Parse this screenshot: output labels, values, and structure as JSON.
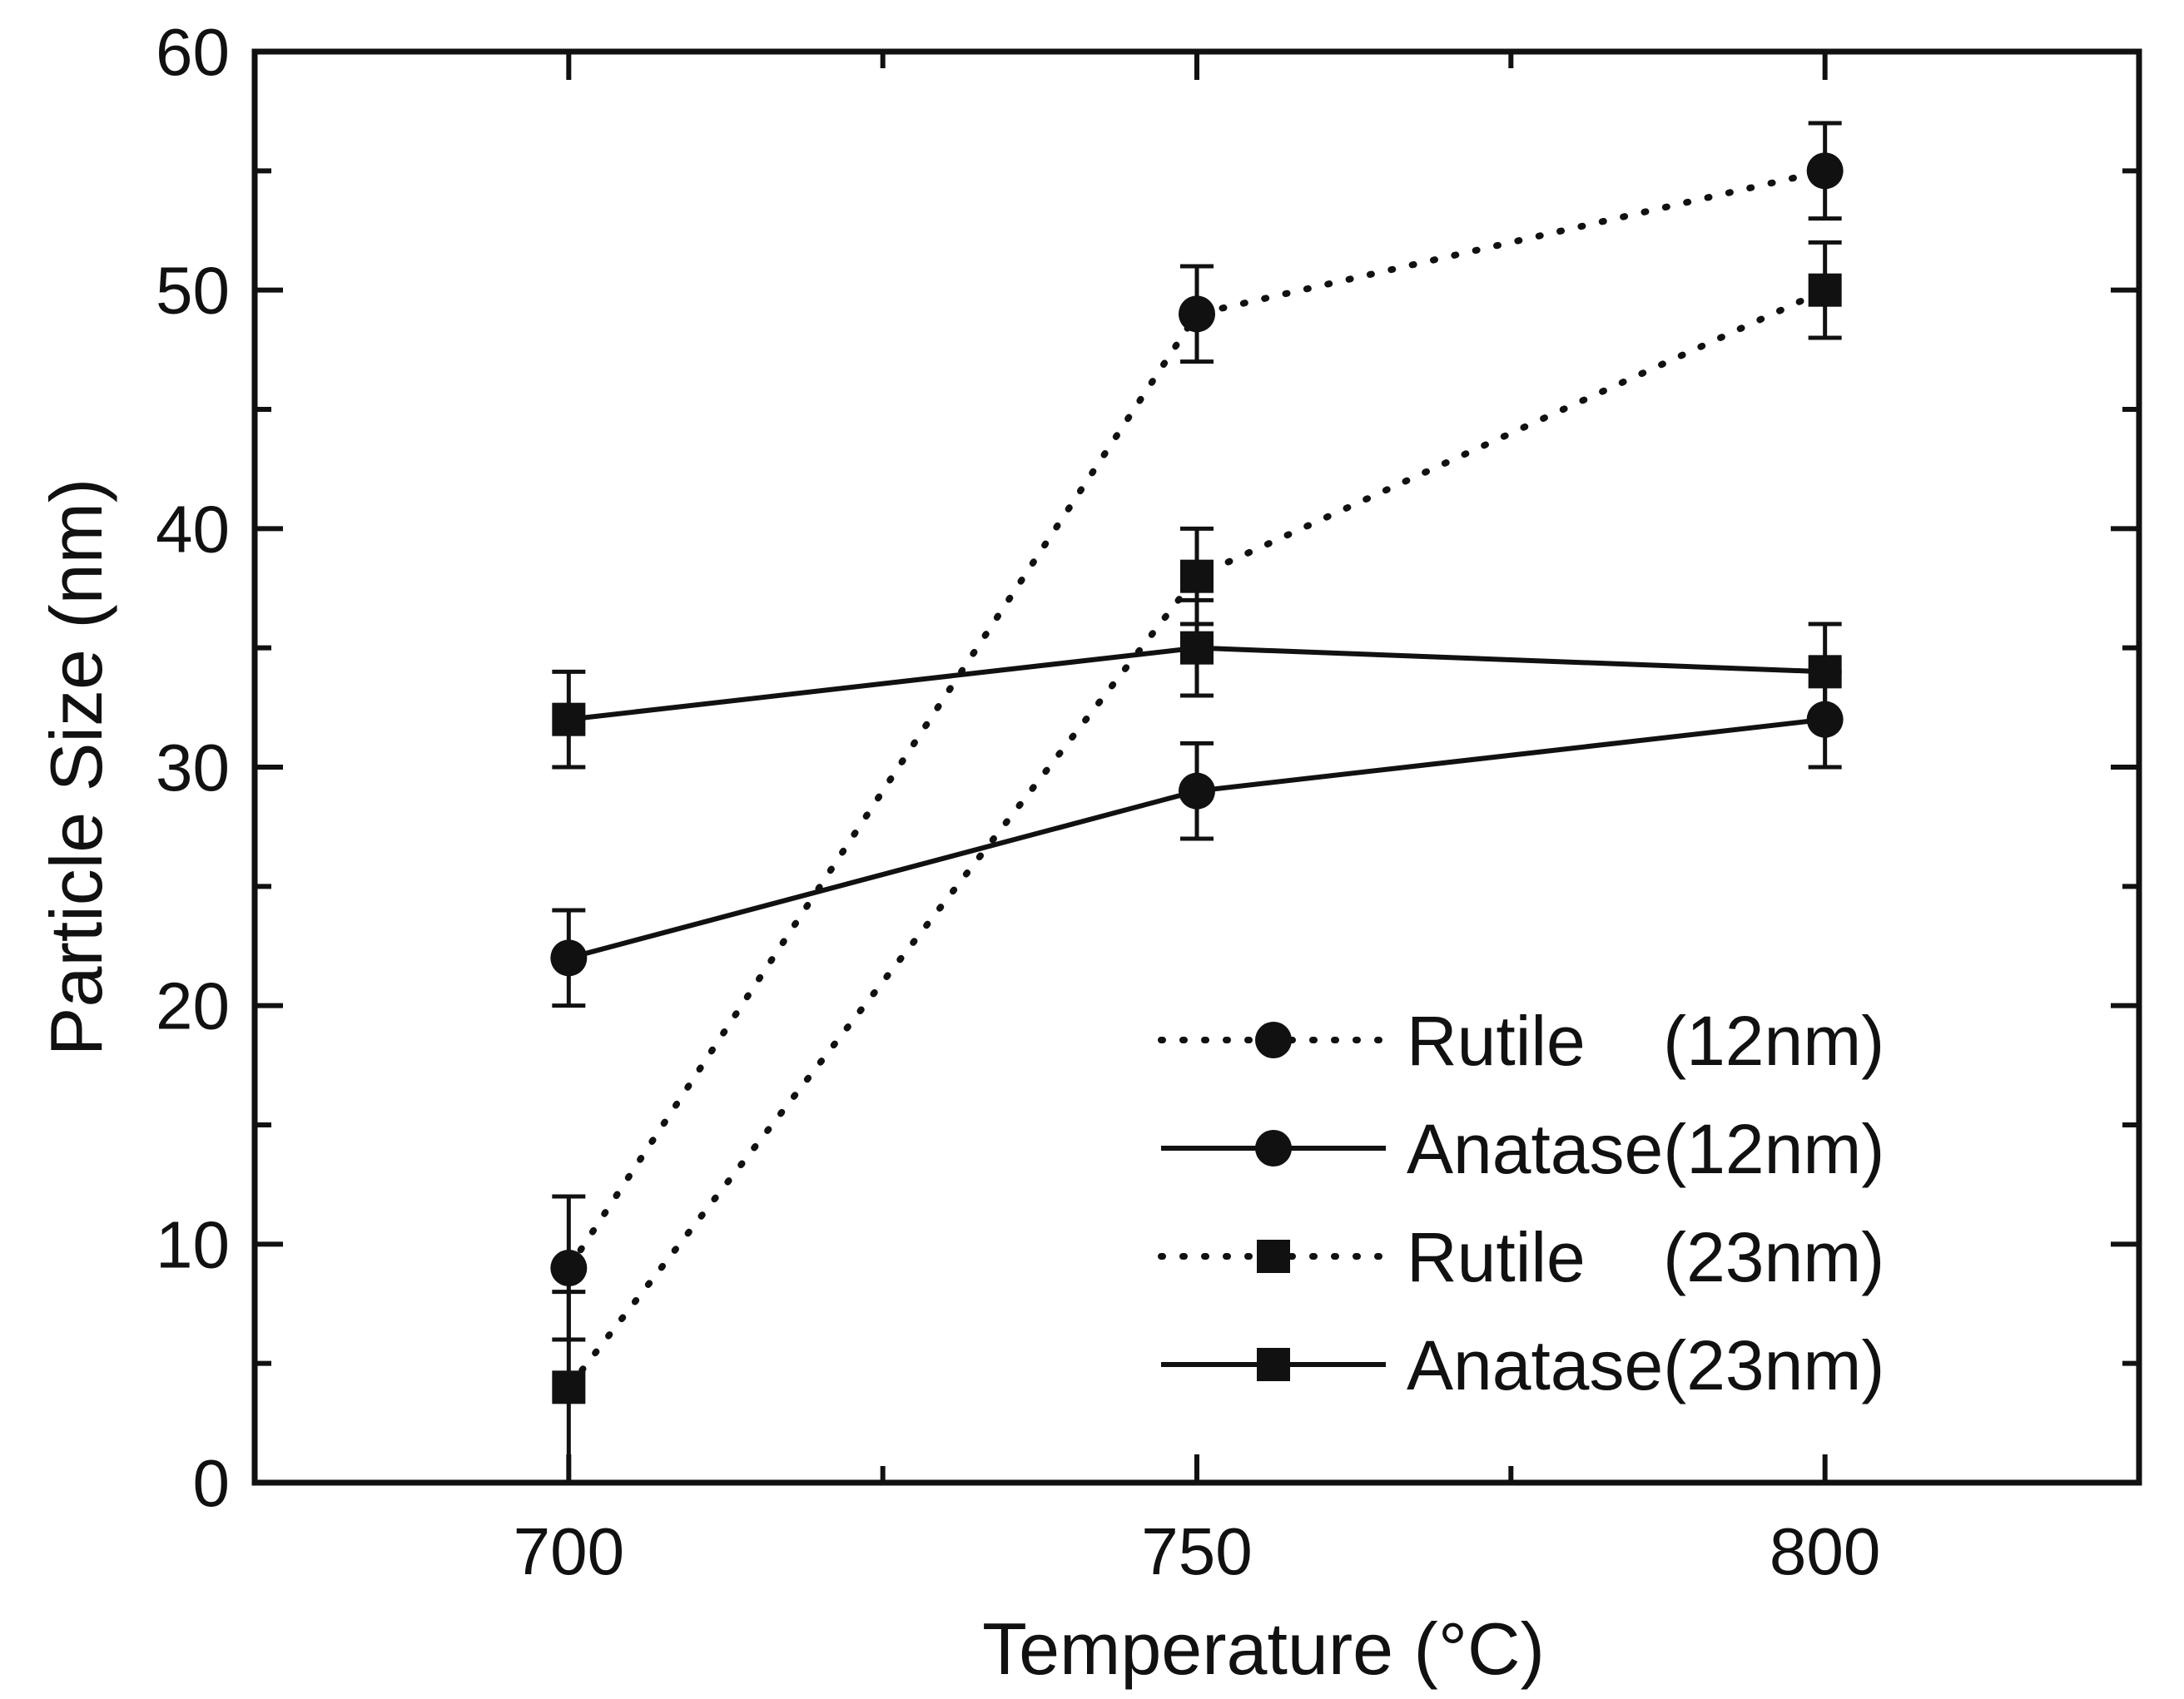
{
  "chart_data": {
    "type": "line",
    "title": "",
    "xlabel": "Temperature (°C)",
    "ylabel": "Particle Size (nm)",
    "xlim": [
      675,
      825
    ],
    "ylim": [
      0,
      60
    ],
    "x_ticks": [
      700,
      750,
      800
    ],
    "y_ticks": [
      0,
      10,
      20,
      30,
      40,
      50,
      60
    ],
    "grid": false,
    "legend_position": "bottom-right",
    "series": [
      {
        "name": "Rutile    (12nm)",
        "marker": "circle",
        "line_style": "dotted",
        "x": [
          700,
          750,
          800
        ],
        "y": [
          9,
          49,
          55
        ],
        "error": [
          3,
          2,
          2
        ]
      },
      {
        "name": "Anatase(12nm)",
        "marker": "circle",
        "line_style": "solid",
        "x": [
          700,
          750,
          800
        ],
        "y": [
          22,
          29,
          32
        ],
        "error": [
          2,
          2,
          2
        ]
      },
      {
        "name": "Rutile    (23nm)",
        "marker": "square",
        "line_style": "dotted",
        "x": [
          700,
          750,
          800
        ],
        "y": [
          4,
          38,
          50
        ],
        "error": [
          4,
          2,
          2
        ]
      },
      {
        "name": "Anatase(23nm)",
        "marker": "square",
        "line_style": "solid",
        "x": [
          700,
          750,
          800
        ],
        "y": [
          32,
          35,
          34
        ],
        "error": [
          2,
          2,
          2
        ]
      }
    ],
    "colors": {
      "line": "#111111",
      "background": "#ffffff"
    }
  }
}
